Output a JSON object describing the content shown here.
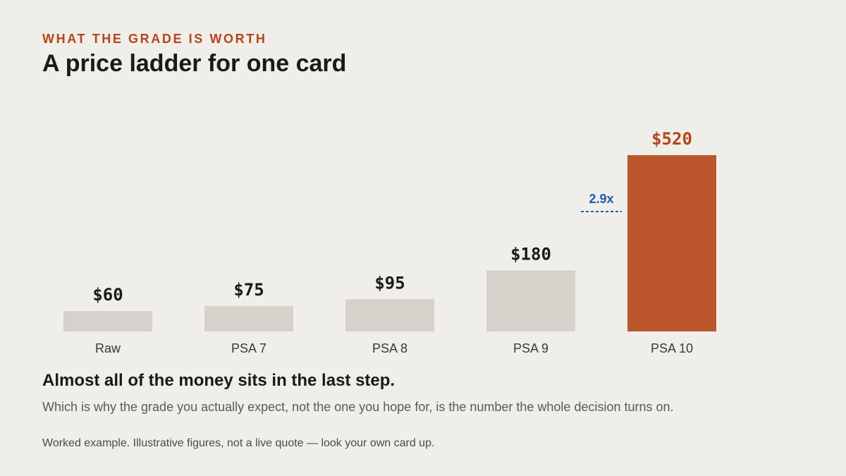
{
  "header": {
    "kicker": "WHAT THE GRADE IS WORTH",
    "title": "A price ladder for one card"
  },
  "chart_data": {
    "type": "bar",
    "title": "A price ladder for one card",
    "categories": [
      "Raw",
      "PSA 7",
      "PSA 8",
      "PSA 9",
      "PSA 10"
    ],
    "values": [
      60,
      75,
      95,
      180,
      520
    ],
    "value_labels": [
      "$60",
      "$75",
      "$95",
      "$180",
      "$520"
    ],
    "highlight_index": 4,
    "ylim": [
      0,
      520
    ],
    "grid": false,
    "colors": {
      "default_bar": "#d6d1ca",
      "highlight_bar": "#bc572d",
      "default_label": "#1a1a1a",
      "highlight_label": "#b5441b",
      "annotation": "#1f5bbf"
    },
    "annotations": [
      {
        "text": "2.9x",
        "between": [
          3,
          4
        ]
      }
    ]
  },
  "takeaway": "Almost all of the money sits in the last step.",
  "body": "Which is why the grade you actually expect, not the one you hope for, is the number the whole decision turns on.",
  "footnote": "Worked example. Illustrative figures, not a live quote — look your own card up."
}
